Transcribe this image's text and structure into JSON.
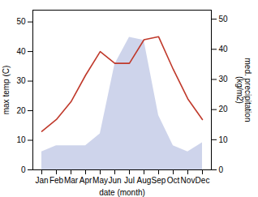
{
  "chart_data": {
    "type": "line",
    "categories": [
      "Jan",
      "Feb",
      "Mar",
      "Apr",
      "May",
      "Jun",
      "Jul",
      "Aug",
      "Sep",
      "Oct",
      "Nov",
      "Dec"
    ],
    "xlabel": "date (month)",
    "ylabel": "max temp (C)",
    "y2label": "med. precipitation\n(kg/m2)",
    "series": [
      {
        "type": "area",
        "axis": "y2",
        "color": "#c5cce8",
        "values": [
          6,
          8,
          8,
          8,
          12,
          35,
          44,
          43,
          18,
          8,
          6,
          9
        ]
      },
      {
        "type": "line",
        "color": "#c0392b",
        "values": [
          13,
          17,
          23,
          32,
          40,
          36,
          36,
          44,
          45,
          34,
          24,
          17
        ]
      }
    ],
    "ylim": [
      0,
      54
    ],
    "yticks": [
      0,
      10,
      20,
      30,
      40,
      50
    ],
    "y2lim": [
      0,
      53
    ],
    "y2ticks": [
      0,
      10,
      20,
      30,
      40,
      50
    ]
  }
}
